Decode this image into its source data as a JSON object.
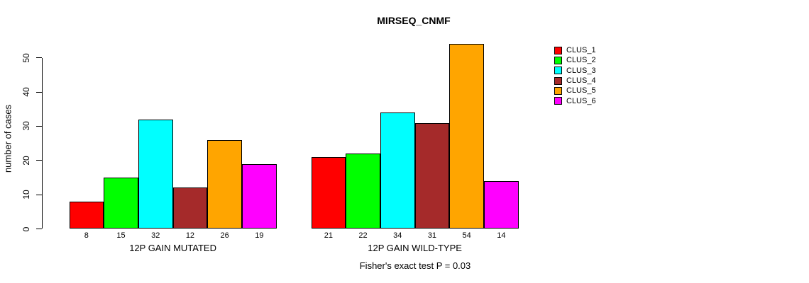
{
  "chart_data": {
    "type": "bar",
    "title": "MIRSEQ_CNMF",
    "xlabel": "",
    "ylabel": "number of cases",
    "annotation": "Fisher's exact test P = 0.03",
    "ylim": [
      0,
      50
    ],
    "yticks": [
      0,
      10,
      20,
      30,
      40,
      50
    ],
    "grid": false,
    "legend_position": "right",
    "bar_value_labels_shown": true,
    "categories": [
      "12P GAIN MUTATED",
      "12P GAIN WILD-TYPE"
    ],
    "series": [
      {
        "name": "CLUS_1",
        "color": "#FF0000",
        "values": [
          8,
          21
        ]
      },
      {
        "name": "CLUS_2",
        "color": "#00FF00",
        "values": [
          15,
          22
        ]
      },
      {
        "name": "CLUS_3",
        "color": "#00FFFF",
        "values": [
          32,
          34
        ]
      },
      {
        "name": "CLUS_4",
        "color": "#A52A2A",
        "values": [
          12,
          31
        ]
      },
      {
        "name": "CLUS_5",
        "color": "#FFA500",
        "values": [
          26,
          54
        ]
      },
      {
        "name": "CLUS_6",
        "color": "#FF00FF",
        "values": [
          19,
          14
        ]
      }
    ],
    "colors": {
      "background": "#FFFFFF",
      "axis": "#000000",
      "bar_border": "#000000",
      "text": "#000000"
    }
  }
}
